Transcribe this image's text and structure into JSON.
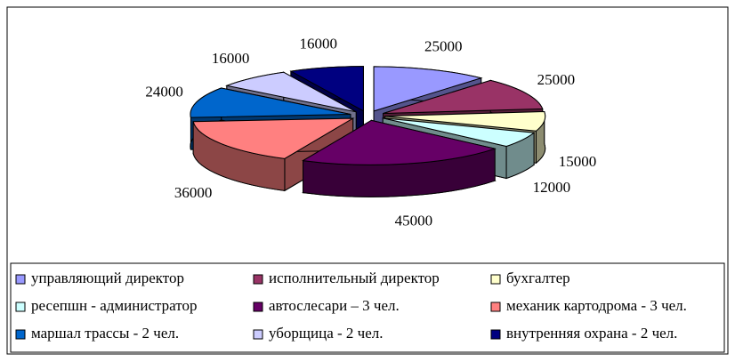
{
  "chart_data": {
    "type": "pie",
    "three_d": true,
    "exploded": true,
    "categories": [
      "управляющий директор",
      "исполнительный директор",
      "бухгалтер",
      "ресепшн - администратор",
      "автослесари – 3 чел.",
      "механик картодрома - 3 чел.",
      "маршал трассы - 2 чел.",
      "уборщица - 2 чел.",
      "внутренняя охрана - 2 чел."
    ],
    "values": [
      25000,
      25000,
      15000,
      12000,
      45000,
      36000,
      24000,
      16000,
      16000
    ],
    "colors": [
      "#9999ff",
      "#993366",
      "#ffffcc",
      "#ccffff",
      "#660066",
      "#ff8080",
      "#0066cc",
      "#ccccff",
      "#000080"
    ],
    "legend": "bottom"
  }
}
